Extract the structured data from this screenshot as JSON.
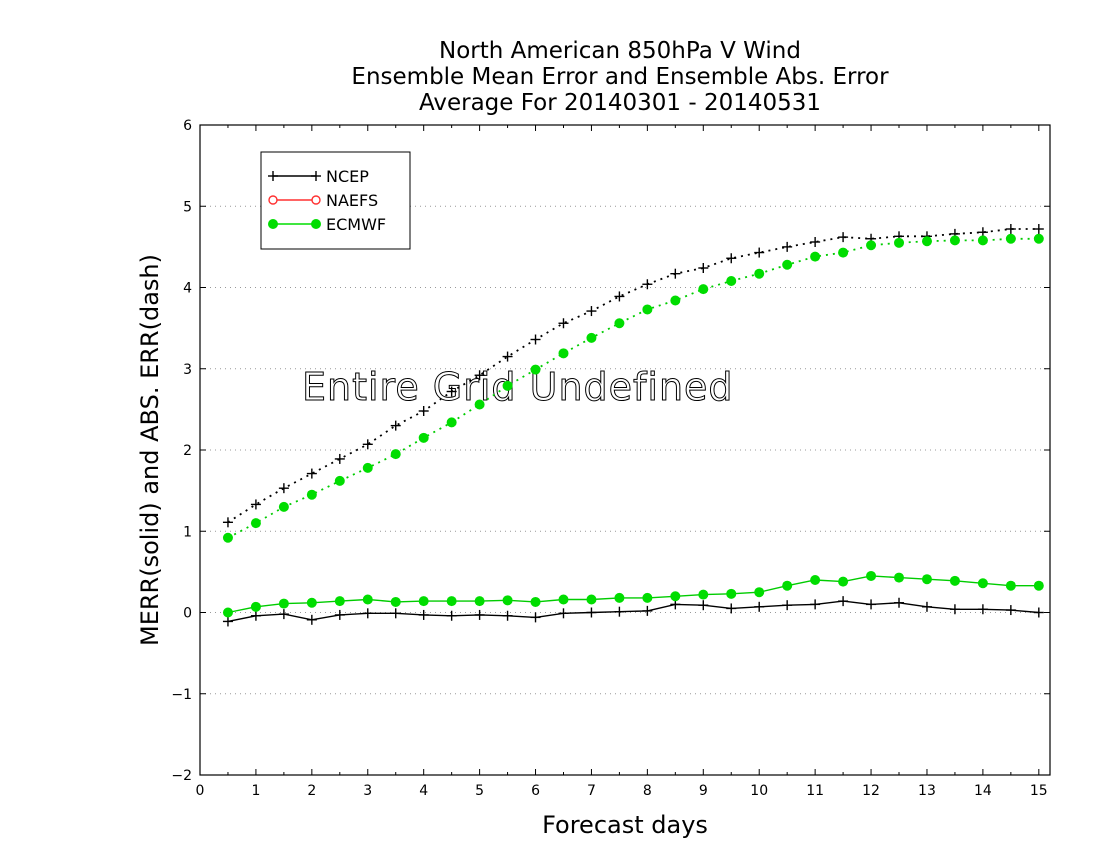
{
  "chart_data": {
    "type": "line",
    "title_lines": [
      "North American 850hPa V Wind",
      "Ensemble Mean Error and Ensemble Abs. Error",
      "Average For 20140301 - 20140531"
    ],
    "xlabel": "Forecast days",
    "ylabel": "MERR(solid) and ABS. ERR(dash)",
    "xlim": [
      0,
      15.2
    ],
    "ylim": [
      -2,
      6
    ],
    "xticks": [
      "0",
      "1",
      "2",
      "3",
      "4",
      "5",
      "6",
      "7",
      "8",
      "9",
      "10",
      "11",
      "12",
      "13",
      "14",
      "15"
    ],
    "yticks": [
      "-2",
      "-1",
      "0",
      "1",
      "2",
      "3",
      "4",
      "5",
      "6"
    ],
    "grid": true,
    "legend_position": "top-left",
    "annotation": "Entire Grid Undefined",
    "x": [
      0.5,
      1,
      1.5,
      2,
      2.5,
      3,
      3.5,
      4,
      4.5,
      5,
      5.5,
      6,
      6.5,
      7,
      7.5,
      8,
      8.5,
      9,
      9.5,
      10,
      10.5,
      11,
      11.5,
      12,
      12.5,
      13,
      13.5,
      14,
      14.5,
      15
    ],
    "series": [
      {
        "name": "NCEP",
        "color": "#000000",
        "marker": "plus",
        "merr": [
          -0.11,
          -0.04,
          -0.02,
          -0.09,
          -0.03,
          -0.01,
          -0.01,
          -0.03,
          -0.04,
          -0.03,
          -0.04,
          -0.06,
          -0.01,
          0.0,
          0.01,
          0.02,
          0.1,
          0.09,
          0.05,
          0.07,
          0.09,
          0.1,
          0.14,
          0.1,
          0.12,
          0.07,
          0.04,
          0.04,
          0.03,
          0.0
        ],
        "abs_err": [
          1.11,
          1.33,
          1.53,
          1.71,
          1.89,
          2.07,
          2.3,
          2.48,
          2.72,
          2.92,
          3.15,
          3.36,
          3.56,
          3.71,
          3.89,
          4.04,
          4.17,
          4.24,
          4.36,
          4.43,
          4.5,
          4.56,
          4.62,
          4.6,
          4.63,
          4.63,
          4.66,
          4.68,
          4.72,
          4.72
        ]
      },
      {
        "name": "NAEFS",
        "color": "#ff3030",
        "marker": "open-circle",
        "merr": [],
        "abs_err": []
      },
      {
        "name": "ECMWF",
        "color": "#00dd00",
        "marker": "filled-circle",
        "merr": [
          0.0,
          0.07,
          0.11,
          0.12,
          0.14,
          0.16,
          0.13,
          0.14,
          0.14,
          0.14,
          0.15,
          0.13,
          0.16,
          0.16,
          0.18,
          0.18,
          0.2,
          0.22,
          0.23,
          0.25,
          0.33,
          0.4,
          0.38,
          0.45,
          0.43,
          0.41,
          0.39,
          0.36,
          0.33,
          0.33
        ],
        "abs_err": [
          0.92,
          1.1,
          1.3,
          1.45,
          1.62,
          1.78,
          1.95,
          2.15,
          2.34,
          2.56,
          2.79,
          2.99,
          3.19,
          3.38,
          3.56,
          3.73,
          3.84,
          3.98,
          4.08,
          4.17,
          4.28,
          4.38,
          4.43,
          4.52,
          4.55,
          4.57,
          4.58,
          4.58,
          4.6,
          4.6
        ]
      }
    ]
  }
}
